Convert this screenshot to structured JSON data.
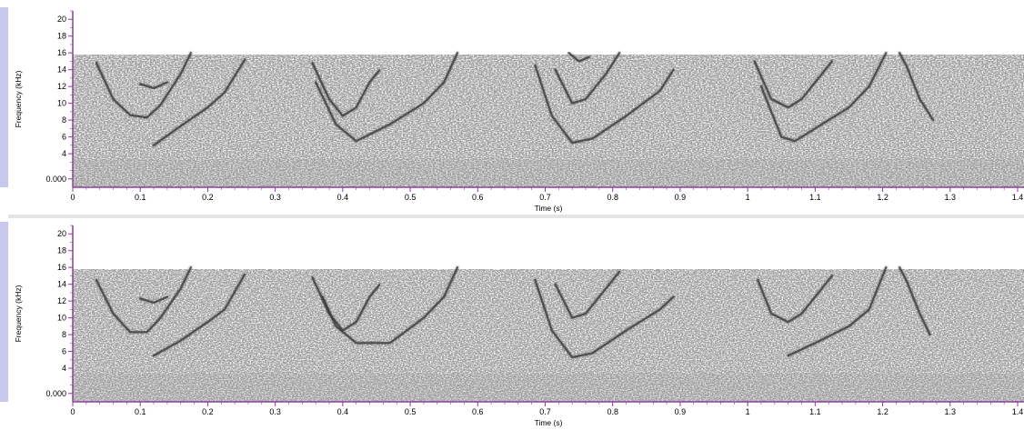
{
  "chart_data": [
    {
      "type": "spectrogram",
      "xlabel": "Time (s)",
      "ylabel": "Frequency (kHz)",
      "xlim": [
        0,
        1.4
      ],
      "ylim": [
        0,
        21
      ],
      "x_ticks": [
        "0",
        "0.1",
        "0.2",
        "0.3",
        "0.4",
        "0.5",
        "0.6",
        "0.7",
        "0.8",
        "0.9",
        "1",
        "1.1",
        "1.2",
        "1.3",
        "1.4"
      ],
      "y_ticks": [
        "0.000",
        "4",
        "6",
        "8",
        "10",
        "12",
        "14",
        "16",
        "18",
        "20"
      ],
      "noise_band_khz": [
        0,
        15.8
      ],
      "grid": false,
      "trace_color": "#3a3a3a",
      "traces": [
        {
          "points": [
            [
              0.035,
              14.8
            ],
            [
              0.06,
              10.5
            ],
            [
              0.085,
              8.6
            ],
            [
              0.11,
              8.3
            ],
            [
              0.13,
              9.8
            ],
            [
              0.16,
              13.5
            ],
            [
              0.175,
              16.0
            ]
          ]
        },
        {
          "points": [
            [
              0.1,
              12.3
            ],
            [
              0.12,
              11.8
            ],
            [
              0.14,
              12.5
            ]
          ]
        },
        {
          "points": [
            [
              0.12,
              5.0
            ],
            [
              0.16,
              7.3
            ],
            [
              0.2,
              9.5
            ],
            [
              0.225,
              11.3
            ],
            [
              0.255,
              15.2
            ]
          ]
        },
        {
          "points": [
            [
              0.355,
              14.8
            ],
            [
              0.38,
              10.5
            ],
            [
              0.4,
              8.5
            ],
            [
              0.42,
              9.5
            ],
            [
              0.44,
              12.5
            ],
            [
              0.455,
              14.0
            ]
          ]
        },
        {
          "points": [
            [
              0.36,
              12.5
            ],
            [
              0.39,
              7.5
            ],
            [
              0.42,
              5.5
            ],
            [
              0.47,
              7.5
            ],
            [
              0.52,
              10.0
            ],
            [
              0.55,
              12.5
            ],
            [
              0.57,
              16.0
            ]
          ]
        },
        {
          "points": [
            [
              0.685,
              14.5
            ],
            [
              0.71,
              8.5
            ],
            [
              0.74,
              5.3
            ],
            [
              0.77,
              5.8
            ],
            [
              0.82,
              8.5
            ],
            [
              0.87,
              11.5
            ],
            [
              0.89,
              14.0
            ]
          ]
        },
        {
          "points": [
            [
              0.715,
              14.0
            ],
            [
              0.74,
              10.0
            ],
            [
              0.76,
              10.5
            ],
            [
              0.79,
              13.5
            ],
            [
              0.81,
              16.0
            ]
          ]
        },
        {
          "points": [
            [
              0.735,
              16.0
            ],
            [
              0.75,
              15.0
            ],
            [
              0.765,
              15.5
            ]
          ]
        },
        {
          "points": [
            [
              1.01,
              15.0
            ],
            [
              1.035,
              10.5
            ],
            [
              1.06,
              9.5
            ],
            [
              1.08,
              10.5
            ],
            [
              1.11,
              13.5
            ],
            [
              1.125,
              15.0
            ]
          ]
        },
        {
          "points": [
            [
              1.02,
              12.0
            ],
            [
              1.05,
              6.0
            ],
            [
              1.07,
              5.5
            ],
            [
              1.1,
              7.0
            ],
            [
              1.15,
              9.5
            ],
            [
              1.18,
              12.0
            ],
            [
              1.205,
              16.0
            ]
          ]
        },
        {
          "points": [
            [
              1.225,
              16.0
            ],
            [
              1.235,
              14.5
            ],
            [
              1.255,
              10.5
            ],
            [
              1.275,
              8.0
            ]
          ]
        }
      ]
    },
    {
      "type": "spectrogram",
      "xlabel": "Time (s)",
      "ylabel": "Frequency (kHz)",
      "xlim": [
        0,
        1.4
      ],
      "ylim": [
        0,
        21
      ],
      "x_ticks": [
        "0",
        "0.1",
        "0.2",
        "0.3",
        "0.4",
        "0.5",
        "0.6",
        "0.7",
        "0.8",
        "0.9",
        "1",
        "1.1",
        "1.2",
        "1.3",
        "1.4"
      ],
      "y_ticks": [
        "0.000",
        "4",
        "6",
        "8",
        "10",
        "12",
        "14",
        "16",
        "18",
        "20"
      ],
      "noise_band_khz": [
        0,
        15.8
      ],
      "grid": false,
      "trace_color": "#3a3a3a",
      "traces": [
        {
          "points": [
            [
              0.035,
              14.5
            ],
            [
              0.06,
              10.5
            ],
            [
              0.085,
              8.3
            ],
            [
              0.11,
              8.3
            ],
            [
              0.13,
              10.0
            ],
            [
              0.16,
              13.5
            ],
            [
              0.175,
              16.0
            ]
          ]
        },
        {
          "points": [
            [
              0.1,
              12.3
            ],
            [
              0.12,
              11.8
            ],
            [
              0.14,
              12.5
            ]
          ]
        },
        {
          "points": [
            [
              0.12,
              5.5
            ],
            [
              0.16,
              7.3
            ],
            [
              0.2,
              9.5
            ],
            [
              0.225,
              11.0
            ],
            [
              0.255,
              15.2
            ]
          ]
        },
        {
          "points": [
            [
              0.355,
              14.8
            ],
            [
              0.38,
              10.5
            ],
            [
              0.4,
              8.5
            ],
            [
              0.42,
              9.5
            ],
            [
              0.44,
              12.5
            ],
            [
              0.455,
              14.0
            ]
          ]
        },
        {
          "points": [
            [
              0.37,
              12.5
            ],
            [
              0.39,
              9.0
            ],
            [
              0.42,
              7.0
            ],
            [
              0.47,
              7.0
            ],
            [
              0.52,
              10.0
            ],
            [
              0.55,
              12.5
            ],
            [
              0.57,
              16.0
            ]
          ]
        },
        {
          "points": [
            [
              0.685,
              14.5
            ],
            [
              0.71,
              8.5
            ],
            [
              0.74,
              5.3
            ],
            [
              0.77,
              5.8
            ],
            [
              0.82,
              8.5
            ],
            [
              0.87,
              11.0
            ],
            [
              0.89,
              12.5
            ]
          ]
        },
        {
          "points": [
            [
              0.715,
              14.0
            ],
            [
              0.74,
              10.0
            ],
            [
              0.76,
              10.5
            ],
            [
              0.79,
              13.5
            ],
            [
              0.81,
              15.5
            ]
          ]
        },
        {
          "points": [
            [
              1.015,
              14.5
            ],
            [
              1.035,
              10.5
            ],
            [
              1.06,
              9.5
            ],
            [
              1.08,
              10.5
            ],
            [
              1.11,
              13.5
            ],
            [
              1.125,
              15.0
            ]
          ]
        },
        {
          "points": [
            [
              1.06,
              5.5
            ],
            [
              1.1,
              7.0
            ],
            [
              1.15,
              9.0
            ],
            [
              1.18,
              11.0
            ],
            [
              1.205,
              16.0
            ]
          ]
        },
        {
          "points": [
            [
              1.225,
              16.0
            ],
            [
              1.235,
              14.5
            ],
            [
              1.255,
              10.5
            ],
            [
              1.27,
              8.0
            ]
          ]
        }
      ]
    }
  ]
}
